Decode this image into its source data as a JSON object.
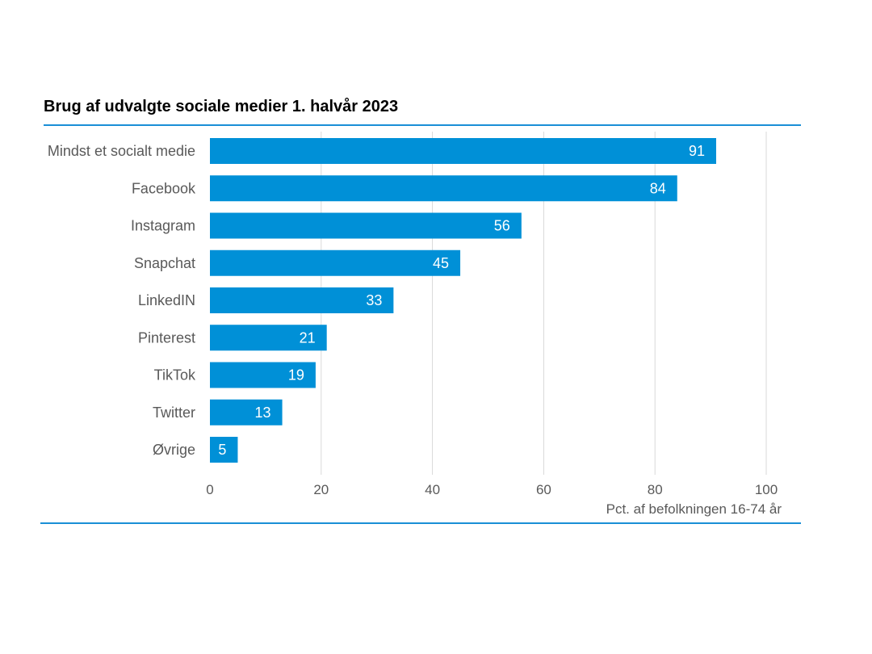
{
  "chart_data": {
    "type": "bar",
    "orientation": "horizontal",
    "title": "Brug af udvalgte sociale medier 1. halvår 2023",
    "xlabel": "Pct. af befolkningen 16-74 år",
    "ylabel": "",
    "categories": [
      "Mindst et socialt medie",
      "Facebook",
      "Instagram",
      "Snapchat",
      "LinkedIN",
      "Pinterest",
      "TikTok",
      "Twitter",
      "Øvrige"
    ],
    "values": [
      91,
      84,
      56,
      45,
      33,
      21,
      19,
      13,
      5
    ],
    "xlim": [
      0,
      100
    ],
    "xticks": [
      0,
      20,
      40,
      60,
      80,
      100
    ],
    "grid": true,
    "legend": "none",
    "colors": {
      "bar": "#0090d7",
      "rule": "#1a8fd6",
      "grid": "#d9d9d9",
      "label_text": "#595959",
      "value_text": "#ffffff",
      "title_text": "#000000"
    }
  }
}
